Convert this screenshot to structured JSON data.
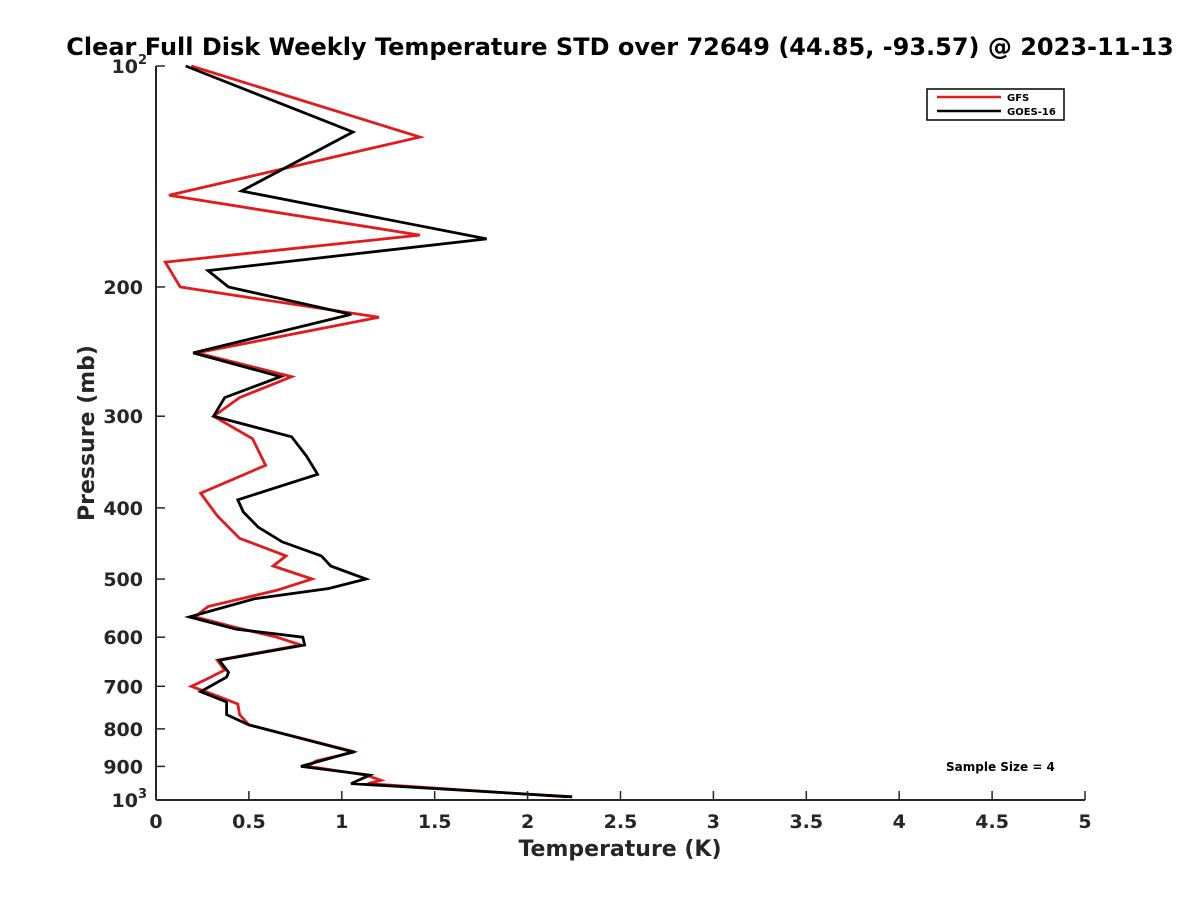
{
  "chart_data": {
    "type": "line",
    "title": "Clear Full Disk Weekly Temperature STD over 72649 (44.85, -93.57) @ 2023-11-13",
    "xlabel": "Temperature (K)",
    "ylabel": "Pressure (mb)",
    "xlim": [
      0,
      5
    ],
    "ylim": [
      100,
      1000
    ],
    "y_scale": "log",
    "y_reversed": true,
    "grid": false,
    "legend_position": "top-right",
    "x_ticks": [
      {
        "value": 0,
        "label": "0"
      },
      {
        "value": 0.5,
        "label": "0.5"
      },
      {
        "value": 1,
        "label": "1"
      },
      {
        "value": 1.5,
        "label": "1.5"
      },
      {
        "value": 2,
        "label": "2"
      },
      {
        "value": 2.5,
        "label": "2.5"
      },
      {
        "value": 3,
        "label": "3"
      },
      {
        "value": 3.5,
        "label": "3.5"
      },
      {
        "value": 4,
        "label": "4"
      },
      {
        "value": 4.5,
        "label": "4.5"
      },
      {
        "value": 5,
        "label": "5"
      }
    ],
    "y_ticks": [
      {
        "value": 100,
        "base": "10",
        "exp": "2"
      },
      {
        "value": 200,
        "label": "200"
      },
      {
        "value": 300,
        "label": "300"
      },
      {
        "value": 400,
        "label": "400"
      },
      {
        "value": 500,
        "label": "500"
      },
      {
        "value": 600,
        "label": "600"
      },
      {
        "value": 700,
        "label": "700"
      },
      {
        "value": 800,
        "label": "800"
      },
      {
        "value": 900,
        "label": "900"
      },
      {
        "value": 1000,
        "base": "10",
        "exp": "3"
      }
    ],
    "series": [
      {
        "name": "GFS",
        "color": "#e31a1c",
        "points": [
          [
            0.19,
            100
          ],
          [
            1.42,
            125
          ],
          [
            0.07,
            150
          ],
          [
            1.42,
            170
          ],
          [
            0.05,
            185
          ],
          [
            0.13,
            200
          ],
          [
            1.2,
            220
          ],
          [
            0.22,
            246
          ],
          [
            0.73,
            265
          ],
          [
            0.45,
            283
          ],
          [
            0.31,
            300
          ],
          [
            0.52,
            322
          ],
          [
            0.59,
            350
          ],
          [
            0.24,
            382
          ],
          [
            0.33,
            410
          ],
          [
            0.45,
            440
          ],
          [
            0.7,
            465
          ],
          [
            0.63,
            480
          ],
          [
            0.84,
            500
          ],
          [
            0.65,
            518
          ],
          [
            0.28,
            545
          ],
          [
            0.21,
            563
          ],
          [
            0.43,
            582
          ],
          [
            0.65,
            600
          ],
          [
            0.78,
            615
          ],
          [
            0.33,
            645
          ],
          [
            0.37,
            665
          ],
          [
            0.27,
            685
          ],
          [
            0.19,
            700
          ],
          [
            0.32,
            720
          ],
          [
            0.44,
            740
          ],
          [
            0.45,
            765
          ],
          [
            0.5,
            790
          ],
          [
            1.07,
            860
          ],
          [
            0.86,
            885
          ],
          [
            0.82,
            900
          ],
          [
            1.13,
            925
          ],
          [
            1.21,
            940
          ],
          [
            1.14,
            950
          ],
          [
            2.21,
            990
          ]
        ]
      },
      {
        "name": "GOES-16",
        "color": "#000000",
        "points": [
          [
            0.16,
            100
          ],
          [
            1.06,
            123
          ],
          [
            0.46,
            148
          ],
          [
            1.78,
            172
          ],
          [
            0.28,
            190
          ],
          [
            0.39,
            200
          ],
          [
            1.05,
            218
          ],
          [
            0.2,
            246
          ],
          [
            0.67,
            265
          ],
          [
            0.37,
            283
          ],
          [
            0.31,
            300
          ],
          [
            0.73,
            320
          ],
          [
            0.81,
            340
          ],
          [
            0.87,
            360
          ],
          [
            0.44,
            390
          ],
          [
            0.47,
            405
          ],
          [
            0.55,
            425
          ],
          [
            0.68,
            445
          ],
          [
            0.89,
            465
          ],
          [
            0.94,
            480
          ],
          [
            1.13,
            500
          ],
          [
            0.93,
            515
          ],
          [
            0.53,
            532
          ],
          [
            0.18,
            563
          ],
          [
            0.43,
            585
          ],
          [
            0.79,
            600
          ],
          [
            0.8,
            615
          ],
          [
            0.34,
            645
          ],
          [
            0.39,
            670
          ],
          [
            0.38,
            680
          ],
          [
            0.24,
            712
          ],
          [
            0.38,
            735
          ],
          [
            0.38,
            765
          ],
          [
            0.5,
            790
          ],
          [
            1.06,
            860
          ],
          [
            0.78,
            900
          ],
          [
            1.15,
            925
          ],
          [
            1.05,
            950
          ],
          [
            2.24,
            990
          ]
        ]
      }
    ],
    "annotations": [
      {
        "text": "Sample Size = 4",
        "position": "bottom-right"
      }
    ]
  }
}
